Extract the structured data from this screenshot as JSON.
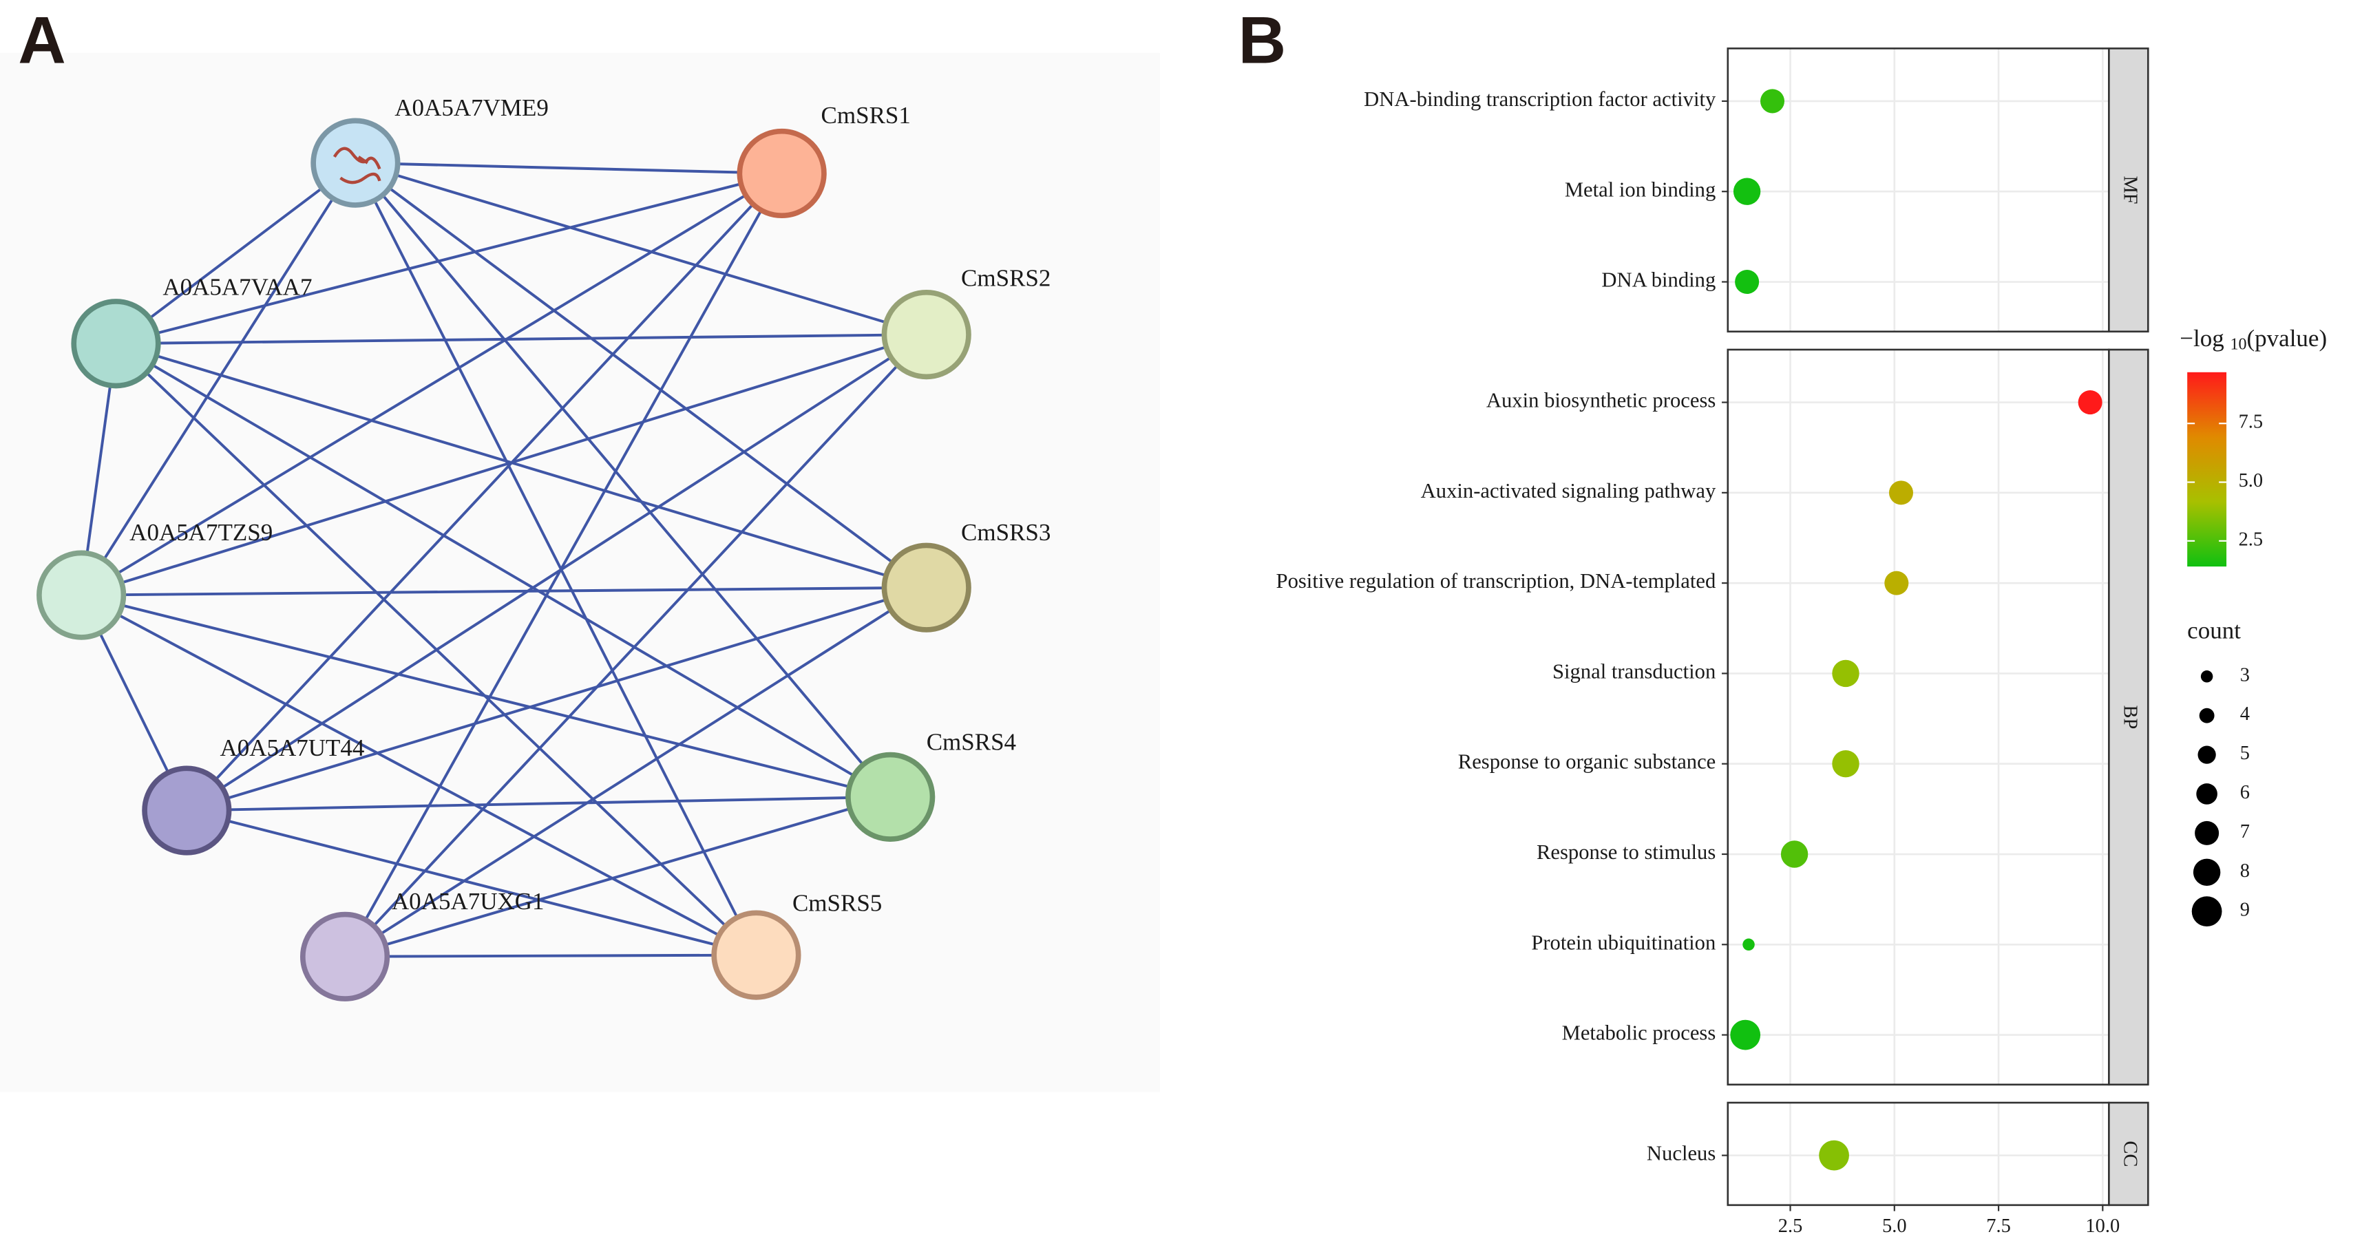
{
  "panels": {
    "a": "A",
    "b": "B"
  },
  "network": {
    "nodes": [
      {
        "label": "A0A5A7VME9",
        "color": "#c6e3f4",
        "border": "#7b97a6"
      },
      {
        "label": "CmSRS1",
        "color": "#fdb396",
        "border": "#c4694c"
      },
      {
        "label": "A0A5A7VAA7",
        "color": "#acdcd1",
        "border": "#5e8e7f"
      },
      {
        "label": "CmSRS2",
        "color": "#e3eec6",
        "border": "#97a276"
      },
      {
        "label": "A0A5A7TZS9",
        "color": "#d3eedd",
        "border": "#83a38b"
      },
      {
        "label": "CmSRS3",
        "color": "#e0d9a5",
        "border": "#8f885c"
      },
      {
        "label": "A0A5A7UT44",
        "color": "#a59fd0",
        "border": "#5b5582"
      },
      {
        "label": "CmSRS4",
        "color": "#b3e0aa",
        "border": "#6b9469"
      },
      {
        "label": "A0A5A7UXG1",
        "color": "#cdc1e0",
        "border": "#84769a"
      },
      {
        "label": "CmSRS5",
        "color": "#fddcbe",
        "border": "#b88e72"
      }
    ],
    "edge_color": "#3f56a6",
    "edges": [
      [
        0,
        1
      ],
      [
        0,
        2
      ],
      [
        0,
        3
      ],
      [
        0,
        4
      ],
      [
        0,
        5
      ],
      [
        0,
        7
      ],
      [
        0,
        9
      ],
      [
        1,
        2
      ],
      [
        1,
        4
      ],
      [
        1,
        6
      ],
      [
        1,
        8
      ],
      [
        2,
        3
      ],
      [
        2,
        4
      ],
      [
        2,
        5
      ],
      [
        2,
        7
      ],
      [
        2,
        9
      ],
      [
        3,
        4
      ],
      [
        3,
        6
      ],
      [
        3,
        8
      ],
      [
        4,
        5
      ],
      [
        4,
        6
      ],
      [
        4,
        7
      ],
      [
        4,
        9
      ],
      [
        5,
        6
      ],
      [
        5,
        8
      ],
      [
        6,
        7
      ],
      [
        6,
        9
      ],
      [
        7,
        8
      ],
      [
        8,
        9
      ]
    ]
  },
  "chart_data": {
    "type": "scatter",
    "facets": [
      {
        "name": "MF",
        "categories": [
          "DNA-binding transcription factor activity",
          "Metal ion binding",
          "DNA binding"
        ],
        "values": [
          2.07,
          1.46,
          1.46
        ],
        "count": [
          7,
          8,
          7
        ],
        "color_values": [
          2.07,
          1.46,
          1.46
        ]
      },
      {
        "name": "BP",
        "categories": [
          "Auxin biosynthetic process",
          "Auxin-activated signaling pathway",
          "Positive regulation of transcription, DNA-templated",
          "Signal transduction",
          "Response to organic substance",
          "Response to stimulus",
          "Protein ubiquitination",
          "Metabolic process"
        ],
        "values": [
          9.7,
          5.16,
          5.05,
          3.83,
          3.83,
          2.6,
          1.5,
          1.42
        ],
        "count": [
          7,
          7,
          7,
          8,
          8,
          8,
          3,
          9
        ],
        "color_values": [
          9.7,
          5.16,
          5.05,
          3.83,
          3.83,
          2.6,
          1.5,
          1.42
        ]
      },
      {
        "name": "CC",
        "categories": [
          "Nucleus"
        ],
        "values": [
          3.55
        ],
        "count": [
          9
        ],
        "color_values": [
          3.55
        ]
      }
    ],
    "xlim": [
      1.0,
      10.15
    ],
    "xticks": [
      2.5,
      {
        "value": 5,
        "label": "5.0"
      },
      7.5,
      {
        "value": 10,
        "label": "10.0"
      }
    ],
    "grid": true,
    "color_title": [
      "−log",
      "10",
      "(pvalue)"
    ],
    "colorlim": [
      1.41,
      9.68
    ],
    "colorticks": [
      2.5,
      {
        "value": 5,
        "label": "5.0"
      },
      7.5
    ],
    "colormap": [
      "#10c010",
      "#a8c000",
      "#e08a00",
      "#ff1a1a"
    ],
    "size_title": "count",
    "size_legend": [
      3,
      4,
      5,
      6,
      7,
      8,
      9
    ]
  }
}
